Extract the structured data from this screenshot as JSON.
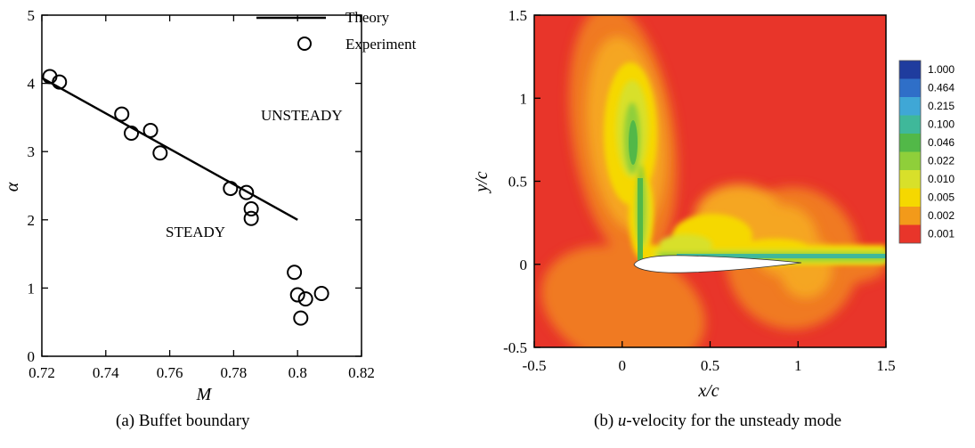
{
  "chart_data": [
    {
      "type": "scatter",
      "xlabel": "M",
      "ylabel": "α",
      "xlim": [
        0.72,
        0.82
      ],
      "ylim": [
        0,
        5
      ],
      "xticks": [
        "0.72",
        "0.74",
        "0.76",
        "0.78",
        "0.8",
        "0.82"
      ],
      "yticks": [
        "0",
        "1",
        "2",
        "3",
        "4",
        "5"
      ],
      "legend": {
        "position": "top-right",
        "theory": "Theory",
        "experiment": "Experiment"
      },
      "regions": {
        "unsteady": "UNSTEADY",
        "steady": "STEADY"
      },
      "series": [
        {
          "name": "Theory",
          "kind": "line",
          "x": [
            0.72,
            0.8
          ],
          "y": [
            4.08,
            2.0
          ]
        },
        {
          "name": "Experiment",
          "kind": "markers",
          "x": [
            0.7225,
            0.7255,
            0.745,
            0.748,
            0.754,
            0.757,
            0.779,
            0.784,
            0.7855,
            0.7855,
            0.799,
            0.8,
            0.8025,
            0.801,
            0.8075
          ],
          "y": [
            4.1,
            4.02,
            3.55,
            3.27,
            3.31,
            2.98,
            2.46,
            2.4,
            2.16,
            2.02,
            1.23,
            0.9,
            0.84,
            0.56,
            0.92
          ]
        }
      ],
      "caption": "(a) Buffet boundary"
    },
    {
      "type": "heatmap",
      "xlabel": "x/c",
      "ylabel": "y/c",
      "xlim": [
        -0.5,
        1.5
      ],
      "ylim": [
        -0.5,
        1.5
      ],
      "xticks": [
        "-0.5",
        "0",
        "0.5",
        "1",
        "1.5"
      ],
      "yticks": [
        "-0.5",
        "0",
        "0.5",
        "1",
        "1.5"
      ],
      "colorbar": {
        "levels": [
          "1.000",
          "0.464",
          "0.215",
          "0.100",
          "0.046",
          "0.022",
          "0.010",
          "0.005",
          "0.002",
          "0.001"
        ],
        "colors": [
          "#1f3c9e",
          "#2f6fc8",
          "#3fa7d6",
          "#3fb89a",
          "#52b848",
          "#8fcf3a",
          "#d8e02a",
          "#f5d800",
          "#f39a1a",
          "#e8352a"
        ]
      },
      "caption_prefix": "(b) ",
      "caption_var": "u",
      "caption_suffix": "-velocity for the unsteady mode"
    }
  ]
}
